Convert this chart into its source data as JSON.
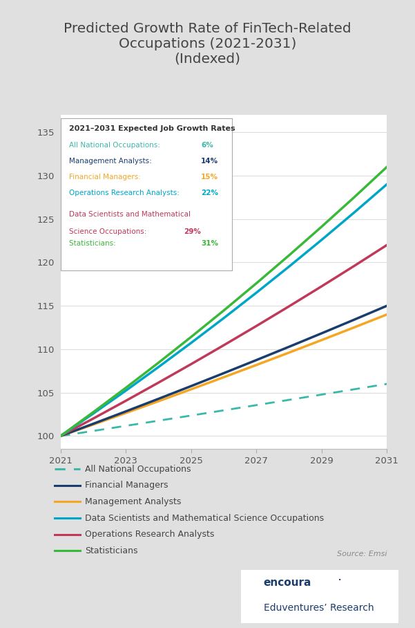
{
  "title": "Predicted Growth Rate of FinTech-Related\nOccupations (2021-2031)\n(Indexed)",
  "bg_outer": "#e0e0e0",
  "bg_inner": "#ffffff",
  "years": [
    2021,
    2022,
    2023,
    2024,
    2025,
    2026,
    2027,
    2028,
    2029,
    2030,
    2031
  ],
  "series_order": [
    "All National Occupations",
    "Management Analysts",
    "Financial Managers",
    "Operations Research Analysts",
    "Data Scientists and Mathematical Science Occupations",
    "Statisticians"
  ],
  "series": {
    "All National Occupations": {
      "growth_pct": 6,
      "color": "#3ab8a8",
      "linestyle": "dashed",
      "linewidth": 2.0
    },
    "Management Analysts": {
      "growth_pct": 14,
      "color": "#f5a623",
      "linestyle": "solid",
      "linewidth": 2.5
    },
    "Financial Managers": {
      "growth_pct": 15,
      "color": "#1b3d6e",
      "linestyle": "solid",
      "linewidth": 2.5
    },
    "Operations Research Analysts": {
      "growth_pct": 22,
      "color": "#c0395a",
      "linestyle": "solid",
      "linewidth": 2.5
    },
    "Data Scientists and Mathematical Science Occupations": {
      "growth_pct": 29,
      "color": "#00a6c8",
      "linestyle": "solid",
      "linewidth": 2.5
    },
    "Statisticians": {
      "growth_pct": 31,
      "color": "#3ab83a",
      "linestyle": "solid",
      "linewidth": 2.5
    }
  },
  "yticks": [
    100,
    105,
    110,
    115,
    120,
    125,
    130,
    135
  ],
  "ylim": [
    98.5,
    137
  ],
  "xticks": [
    2021,
    2023,
    2025,
    2027,
    2029,
    2031
  ],
  "xlim": [
    2021,
    2031
  ],
  "source_text": "Source: Emsi",
  "annotation_box_title": "2021–2031 Expected Job Growth Rates",
  "annotation_entries": [
    {
      "label": "All National Occupations: ",
      "pct": "6%",
      "label_color": "#3ab8a8",
      "pct_color": "#3ab8a8"
    },
    {
      "label": "Management Analysts: ",
      "pct": "14%",
      "label_color": "#1b3d6e",
      "pct_color": "#1b3d6e"
    },
    {
      "label": "Financial Managers: ",
      "pct": "15%",
      "label_color": "#f5a623",
      "pct_color": "#f5a623"
    },
    {
      "label": "Operations Research Analysts: ",
      "pct": "22%",
      "label_color": "#00a6c8",
      "pct_color": "#00a6c8"
    },
    {
      "label": "Data Scientists and Mathematical\nScience Occupations: ",
      "pct": "29%",
      "label_color": "#c0395a",
      "pct_color": "#c0395a"
    },
    {
      "label": "Statisticians: ",
      "pct": "31%",
      "label_color": "#3ab83a",
      "pct_color": "#3ab83a"
    }
  ],
  "legend_entries": [
    {
      "label": "All National Occupations",
      "color": "#3ab8a8",
      "linestyle": "dashed"
    },
    {
      "label": "Financial Managers",
      "color": "#1b3d6e",
      "linestyle": "solid"
    },
    {
      "label": "Management Analysts",
      "color": "#f5a623",
      "linestyle": "solid"
    },
    {
      "label": "Data Scientists and Mathematical Science Occupations",
      "color": "#00a6c8",
      "linestyle": "solid"
    },
    {
      "label": "Operations Research Analysts",
      "color": "#c0395a",
      "linestyle": "solid"
    },
    {
      "label": "Statisticians",
      "color": "#3ab83a",
      "linestyle": "solid"
    }
  ]
}
